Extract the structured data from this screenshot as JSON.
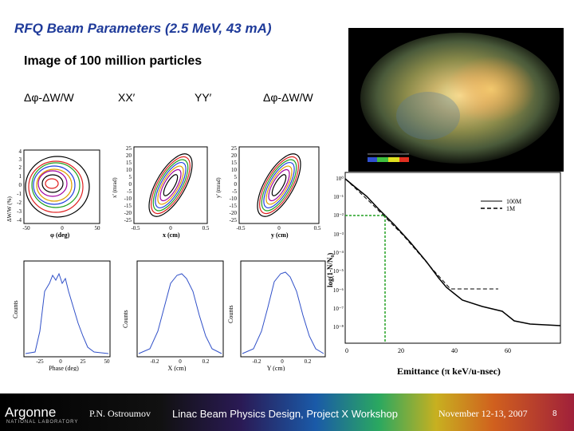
{
  "title": "RFQ Beam Parameters (2.5 MeV, 43 mA)",
  "subtitle": "Image of 100 million particles",
  "plot_labels": [
    "Δφ-ΔW/W",
    "XX′",
    "YY′",
    "Δφ-ΔW/W"
  ],
  "phase_space": {
    "p1": {
      "ylabel": "ΔW/W (%)",
      "xlabel": "φ (deg)",
      "yticks": [
        "4",
        "3",
        "2",
        "1",
        "0",
        "-1",
        "-2",
        "-3",
        "-4"
      ],
      "xticks": [
        "-50",
        "0",
        "50"
      ]
    },
    "p2": {
      "ylabel": "x' (mrad)",
      "xlabel": "x (cm)",
      "yticks": [
        "25",
        "20",
        "15",
        "10",
        "5",
        "0",
        "-5",
        "-10",
        "-15",
        "-20",
        "-25"
      ],
      "xticks": [
        "-0.5",
        "0",
        "0.5"
      ]
    },
    "p3": {
      "ylabel": "y' (mrad)",
      "xlabel": "y (cm)",
      "yticks": [
        "25",
        "20",
        "15",
        "10",
        "5",
        "0",
        "-5",
        "-10",
        "-15",
        "-20",
        "-25"
      ],
      "xticks": [
        "-0.5",
        "0",
        "0.5"
      ]
    }
  },
  "histograms": {
    "h1": {
      "ylabel": "Counts",
      "xlabel": "Phase (deg)",
      "xticks": [
        "-25",
        "0",
        "25",
        "50"
      ]
    },
    "h2": {
      "ylabel": "Counts",
      "xlabel": "X (cm)",
      "xticks": [
        "-0.2",
        "0",
        "0.2"
      ]
    },
    "h3": {
      "ylabel": "Counts",
      "xlabel": "Y (cm)",
      "xticks": [
        "-0.2",
        "0",
        "0.2"
      ]
    }
  },
  "emittance": {
    "xlabel": "Emittance (π keV/u-nsec)",
    "ylabel": "log(1-N/N₀)",
    "xticks": [
      "0",
      "20",
      "40",
      "60"
    ],
    "yticks": [
      "10⁰",
      "10⁻¹",
      "10⁻²",
      "10⁻³",
      "10⁻⁴",
      "10⁻⁵",
      "10⁻⁶",
      "10⁻⁷",
      "10⁻⁸"
    ],
    "legend": [
      "100M",
      "1M"
    ]
  },
  "footer": {
    "logo": "Argonne",
    "logo_sub": "NATIONAL LABORATORY",
    "author": "P.N. Ostroumov",
    "workshop": "Linac Beam Physics Design, Project X Workshop",
    "date": "November 12-13, 2007",
    "page": "8"
  }
}
